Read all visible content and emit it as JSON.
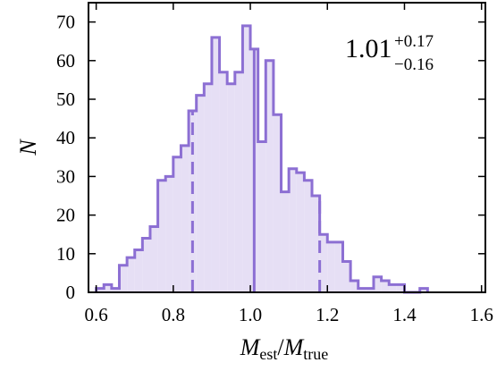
{
  "chart_data": {
    "type": "bar",
    "style": "step-histogram",
    "xlabel": {
      "main": "M",
      "sub1": "est",
      "slash": "/",
      "main2": "M",
      "sub2": "true"
    },
    "ylabel": "N",
    "xlim": [
      0.58,
      1.61
    ],
    "ylim": [
      0,
      75
    ],
    "xticks": [
      0.6,
      0.8,
      1.0,
      1.2,
      1.4,
      1.6
    ],
    "xtick_labels": [
      "0.6",
      "0.8",
      "1.0",
      "1.2",
      "1.4",
      "1.6"
    ],
    "yticks": [
      0,
      10,
      20,
      30,
      40,
      50,
      60,
      70
    ],
    "ytick_labels": [
      "0",
      "10",
      "20",
      "30",
      "40",
      "50",
      "60",
      "70"
    ],
    "bin_width": 0.02,
    "bin_edges_start": 0.6,
    "counts": [
      1,
      2,
      1,
      7,
      9,
      11,
      14,
      17,
      29,
      30,
      35,
      38,
      47,
      51,
      54,
      66,
      57,
      54,
      57,
      69,
      63,
      39,
      60,
      46,
      26,
      32,
      31,
      29,
      25,
      15,
      13,
      13,
      8,
      3,
      1,
      1,
      4,
      3,
      2,
      2,
      0,
      0,
      1
    ],
    "median": 1.01,
    "p16": 0.85,
    "p84": 1.18,
    "annotation": {
      "value": "1.01",
      "plus": "+0.17",
      "minus": "−0.16"
    },
    "colors": {
      "line": "#8c6fd3",
      "fill": "#e6dff5"
    },
    "grid": false,
    "legend": "none"
  }
}
